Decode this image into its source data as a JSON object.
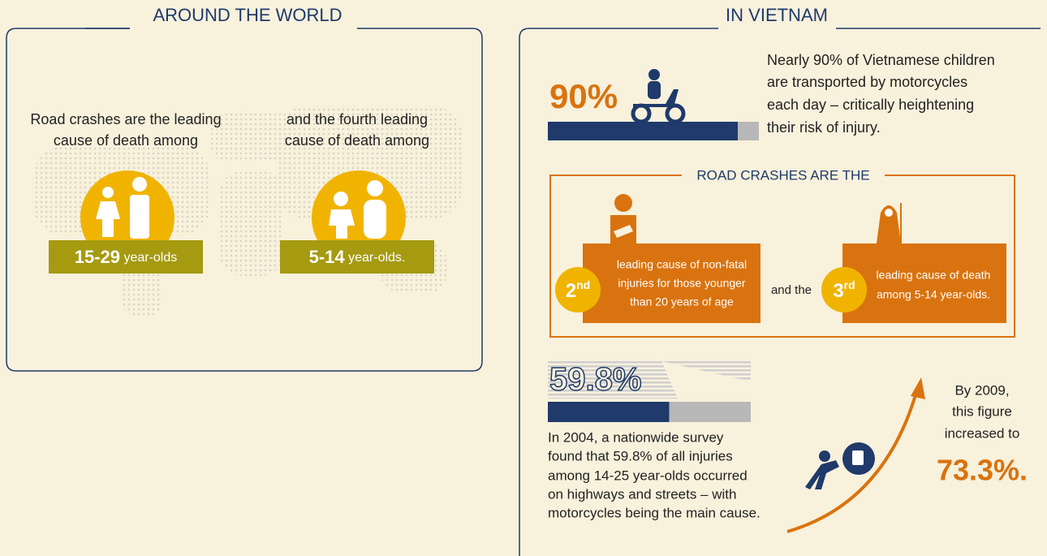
{
  "world": {
    "title": "AROUND THE WORLD",
    "items": [
      {
        "text": [
          "Road crashes are the leading",
          "cause of death among"
        ],
        "age": "15-29",
        "suffix": "year-olds"
      },
      {
        "text": [
          "and the fourth leading",
          "cause of death among"
        ],
        "age": "5-14",
        "suffix": "year-olds."
      }
    ]
  },
  "vietnam": {
    "title": "IN VIETNAM",
    "motorcycle": {
      "value": 90,
      "value_label": "90%",
      "text": [
        "Nearly 90% of Vietnamese children",
        "are transported by motorcycles",
        "each day – critically heightening",
        "their risk of injury."
      ]
    },
    "ranks": {
      "title": "ROAD CRASHES ARE THE",
      "connector": "and the",
      "items": [
        {
          "rank": "2",
          "suffix": "nd",
          "text": [
            "leading cause of non-fatal",
            "injuries for those younger",
            "than 20 years of age"
          ]
        },
        {
          "rank": "3",
          "suffix": "rd",
          "text": [
            "leading cause of death",
            "among 5-14 year-olds."
          ]
        }
      ]
    },
    "survey": {
      "value": 59.8,
      "value_label": "59.8%",
      "text": [
        "In 2004, a nationwide survey",
        "found that 59.8% of all injuries",
        "among 14-25 year-olds occurred",
        "on highways and streets – with",
        "motorcycles being the main cause."
      ]
    },
    "trend": {
      "text": [
        "By 2009,",
        "this figure",
        "increased to"
      ],
      "value_label": "73.3%."
    }
  }
}
